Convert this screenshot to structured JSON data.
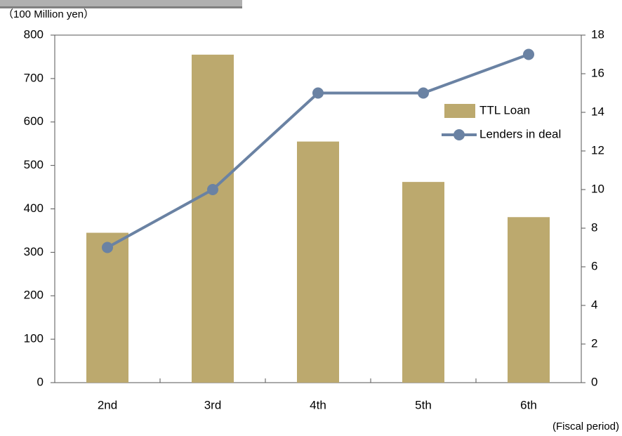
{
  "chart_data": {
    "type": "bar",
    "y_label": "（100 Million yen）",
    "x_label": "(Fiscal period)",
    "categories": [
      "2nd",
      "3rd",
      "4th",
      "5th",
      "6th"
    ],
    "series": [
      {
        "name": "TTL Loan",
        "type": "bar",
        "color": "#bca96e",
        "values": [
          345,
          755,
          555,
          462,
          381
        ]
      },
      {
        "name": "Lenders in deal",
        "type": "line",
        "axis": "y2",
        "color": "#6a82a3",
        "values": [
          7,
          10,
          15,
          15,
          17
        ]
      }
    ],
    "ylim": [
      0,
      800
    ],
    "yticks": [
      0,
      100,
      200,
      300,
      400,
      500,
      600,
      700,
      800
    ],
    "y2lim": [
      0,
      18
    ],
    "y2ticks": [
      0,
      2,
      4,
      6,
      8,
      10,
      12,
      14,
      16,
      18
    ],
    "legend": "right"
  }
}
